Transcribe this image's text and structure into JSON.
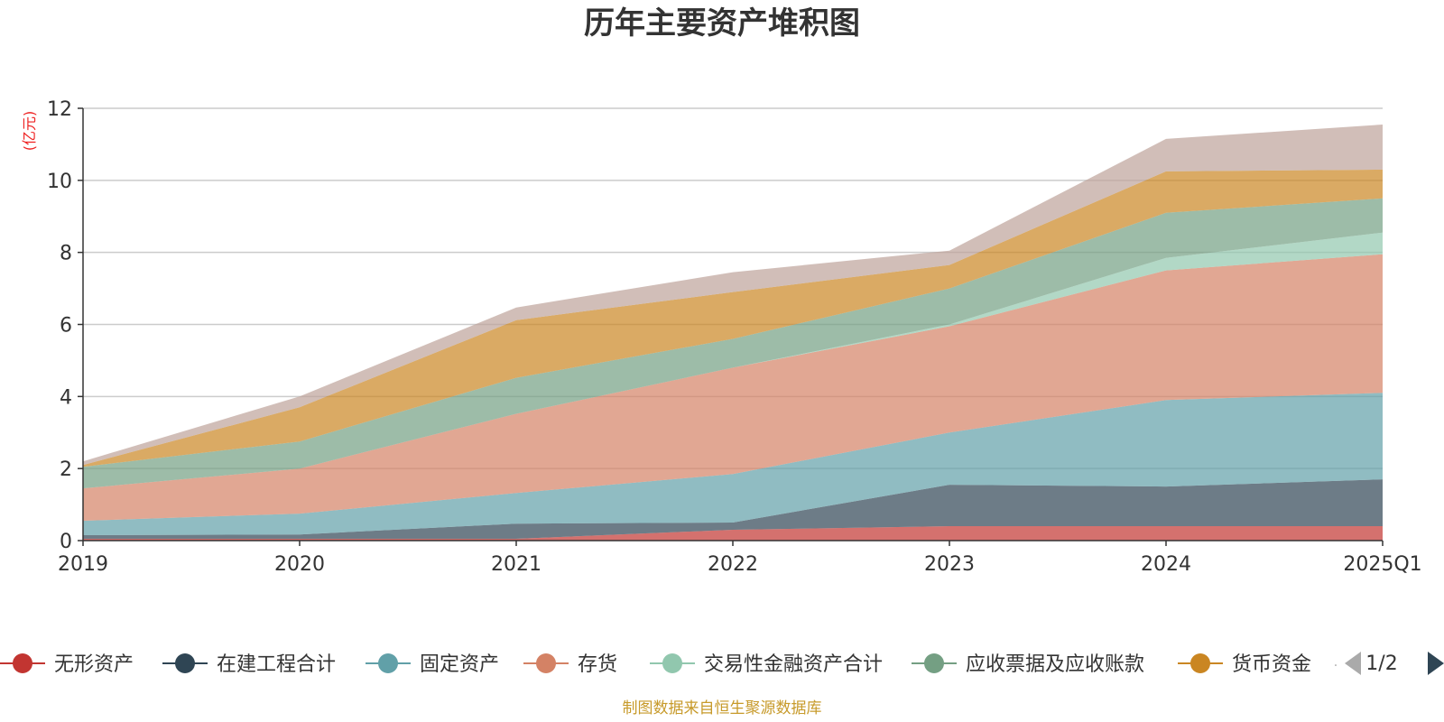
{
  "chart_data": {
    "type": "area",
    "title": "历年主要资产堆积图",
    "y_unit": "(亿元)",
    "categories": [
      "2019",
      "2020",
      "2021",
      "2022",
      "2023",
      "2024",
      "2025Q1"
    ],
    "ylim": [
      0,
      12
    ],
    "yticks": [
      "0",
      "2",
      "4",
      "6",
      "8",
      "10",
      "12"
    ],
    "grid": true,
    "stacked": true,
    "series": [
      {
        "name": "无形资产",
        "color": "#c23531",
        "values": [
          0.05,
          0.05,
          0.05,
          0.3,
          0.4,
          0.4,
          0.4
        ]
      },
      {
        "name": "在建工程合计",
        "color": "#2f4554",
        "values": [
          0.1,
          0.12,
          0.42,
          0.2,
          1.15,
          1.1,
          1.3
        ]
      },
      {
        "name": "固定资产",
        "color": "#61a0a8",
        "values": [
          0.4,
          0.58,
          0.85,
          1.35,
          1.45,
          2.4,
          2.4
        ]
      },
      {
        "name": "存货",
        "color": "#d48265",
        "values": [
          0.9,
          1.25,
          2.2,
          2.95,
          2.95,
          3.6,
          3.85
        ]
      },
      {
        "name": "交易性金融资产合计",
        "color": "#91c7ae",
        "values": [
          0.0,
          0.0,
          0.0,
          0.0,
          0.05,
          0.35,
          0.6
        ]
      },
      {
        "name": "应收票据及应收账款",
        "color": "#749f83",
        "values": [
          0.6,
          0.75,
          1.0,
          0.8,
          1.0,
          1.25,
          0.95
        ]
      },
      {
        "name": "货币资金",
        "color": "#ca8622",
        "values": [
          0.05,
          0.95,
          1.6,
          1.3,
          0.65,
          1.15,
          0.8
        ]
      },
      {
        "name": "",
        "color": "#bda29a",
        "values": [
          0.1,
          0.3,
          0.35,
          0.55,
          0.4,
          0.9,
          1.25
        ]
      }
    ],
    "legend": {
      "placement": "bottom",
      "page": "1/2"
    }
  },
  "footer": {
    "source": "制图数据来自恒生聚源数据库"
  }
}
